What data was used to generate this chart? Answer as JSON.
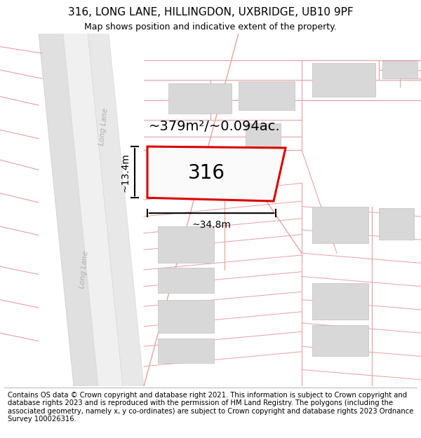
{
  "title_line1": "316, LONG LANE, HILLINGDON, UXBRIDGE, UB10 9PF",
  "title_line2": "Map shows position and indicative extent of the property.",
  "footer_text": "Contains OS data © Crown copyright and database right 2021. This information is subject to Crown copyright and database rights 2023 and is reproduced with the permission of HM Land Registry. The polygons (including the associated geometry, namely x, y co-ordinates) are subject to Crown copyright and database rights 2023 Ordnance Survey 100026316.",
  "bg_color": "#ffffff",
  "map_bg": "#ffffff",
  "building_fill": "#d8d8d8",
  "building_edge": "#c0c0c0",
  "pink_line_color": "#e8a0a0",
  "highlight_fill": "#ffffff",
  "highlight_edge": "#dd0000",
  "highlight_label": "316",
  "area_text": "~379m²/~0.094ac.",
  "dim_width": "~34.8m",
  "dim_height": "~13.4m",
  "title_fontsize": 11,
  "subtitle_fontsize": 9,
  "footer_fontsize": 7.2,
  "label_fontsize": 20,
  "area_fontsize": 14,
  "dim_fontsize": 10,
  "road_label_fontsize": 7.5,
  "road_fill": "#e8e8e8",
  "road_edge": "#d0d0d0"
}
